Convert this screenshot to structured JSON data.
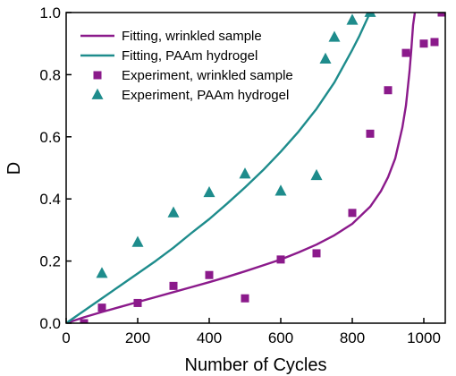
{
  "chart_data": {
    "type": "scatter",
    "xlabel": "Number of Cycles",
    "ylabel": "D",
    "xlim": [
      0,
      1060
    ],
    "ylim": [
      0,
      1.0
    ],
    "x_ticks": [
      0,
      200,
      400,
      600,
      800,
      1000
    ],
    "x_tick_labels": [
      "0",
      "200",
      "400",
      "600",
      "800",
      "1000"
    ],
    "y_ticks": [
      0.0,
      0.2,
      0.4,
      0.6,
      0.8,
      1.0
    ],
    "y_tick_labels": [
      "0.0",
      "0.2",
      "0.4",
      "0.6",
      "0.8",
      "1.0"
    ],
    "grid": false,
    "legend_position": "top-left",
    "legend": [
      {
        "label": "Fitting, wrinkled sample",
        "type": "line",
        "color": "#8B1A8B"
      },
      {
        "label": "Fitting, PAAm hydrogel",
        "type": "line",
        "color": "#1E8C8C"
      },
      {
        "label": "Experiment, wrinkled sample",
        "type": "square",
        "color": "#8B1A8B"
      },
      {
        "label": "Experiment, PAAm hydrogel",
        "type": "triangle",
        "color": "#1E8C8C"
      }
    ],
    "series": [
      {
        "name": "Fitting, wrinkled sample",
        "kind": "line",
        "color": "#8B1A8B",
        "x": [
          0,
          50,
          100,
          150,
          200,
          250,
          300,
          350,
          400,
          450,
          500,
          550,
          600,
          650,
          700,
          750,
          800,
          850,
          880,
          900,
          920,
          940,
          950,
          960,
          965,
          970,
          975
        ],
        "y": [
          0,
          0.019,
          0.036,
          0.052,
          0.068,
          0.084,
          0.1,
          0.116,
          0.132,
          0.149,
          0.167,
          0.186,
          0.205,
          0.228,
          0.253,
          0.283,
          0.32,
          0.375,
          0.425,
          0.47,
          0.53,
          0.63,
          0.7,
          0.81,
          0.88,
          0.96,
          1.0
        ]
      },
      {
        "name": "Fitting, PAAm hydrogel",
        "kind": "line",
        "color": "#1E8C8C",
        "x": [
          0,
          50,
          100,
          150,
          200,
          250,
          300,
          350,
          400,
          450,
          500,
          550,
          600,
          650,
          700,
          750,
          800,
          820,
          840,
          850
        ],
        "y": [
          0,
          0.04,
          0.08,
          0.12,
          0.16,
          0.2,
          0.243,
          0.29,
          0.335,
          0.385,
          0.437,
          0.492,
          0.552,
          0.617,
          0.69,
          0.775,
          0.88,
          0.925,
          0.975,
          1.0
        ]
      },
      {
        "name": "Experiment, wrinkled sample",
        "kind": "scatter",
        "marker": "square",
        "color": "#8B1A8B",
        "x": [
          50,
          100,
          200,
          300,
          400,
          500,
          600,
          700,
          800,
          850,
          900,
          950,
          1000,
          1030,
          1050
        ],
        "y": [
          0.0,
          0.05,
          0.065,
          0.12,
          0.155,
          0.08,
          0.205,
          0.225,
          0.355,
          0.61,
          0.75,
          0.87,
          0.9,
          0.905,
          1.0
        ]
      },
      {
        "name": "Experiment, PAAm hydrogel",
        "kind": "scatter",
        "marker": "triangle",
        "color": "#1E8C8C",
        "x": [
          100,
          200,
          300,
          400,
          500,
          600,
          700,
          725,
          750,
          800,
          850
        ],
        "y": [
          0.16,
          0.26,
          0.355,
          0.42,
          0.48,
          0.425,
          0.475,
          0.85,
          0.92,
          0.975,
          1.0
        ]
      }
    ]
  }
}
